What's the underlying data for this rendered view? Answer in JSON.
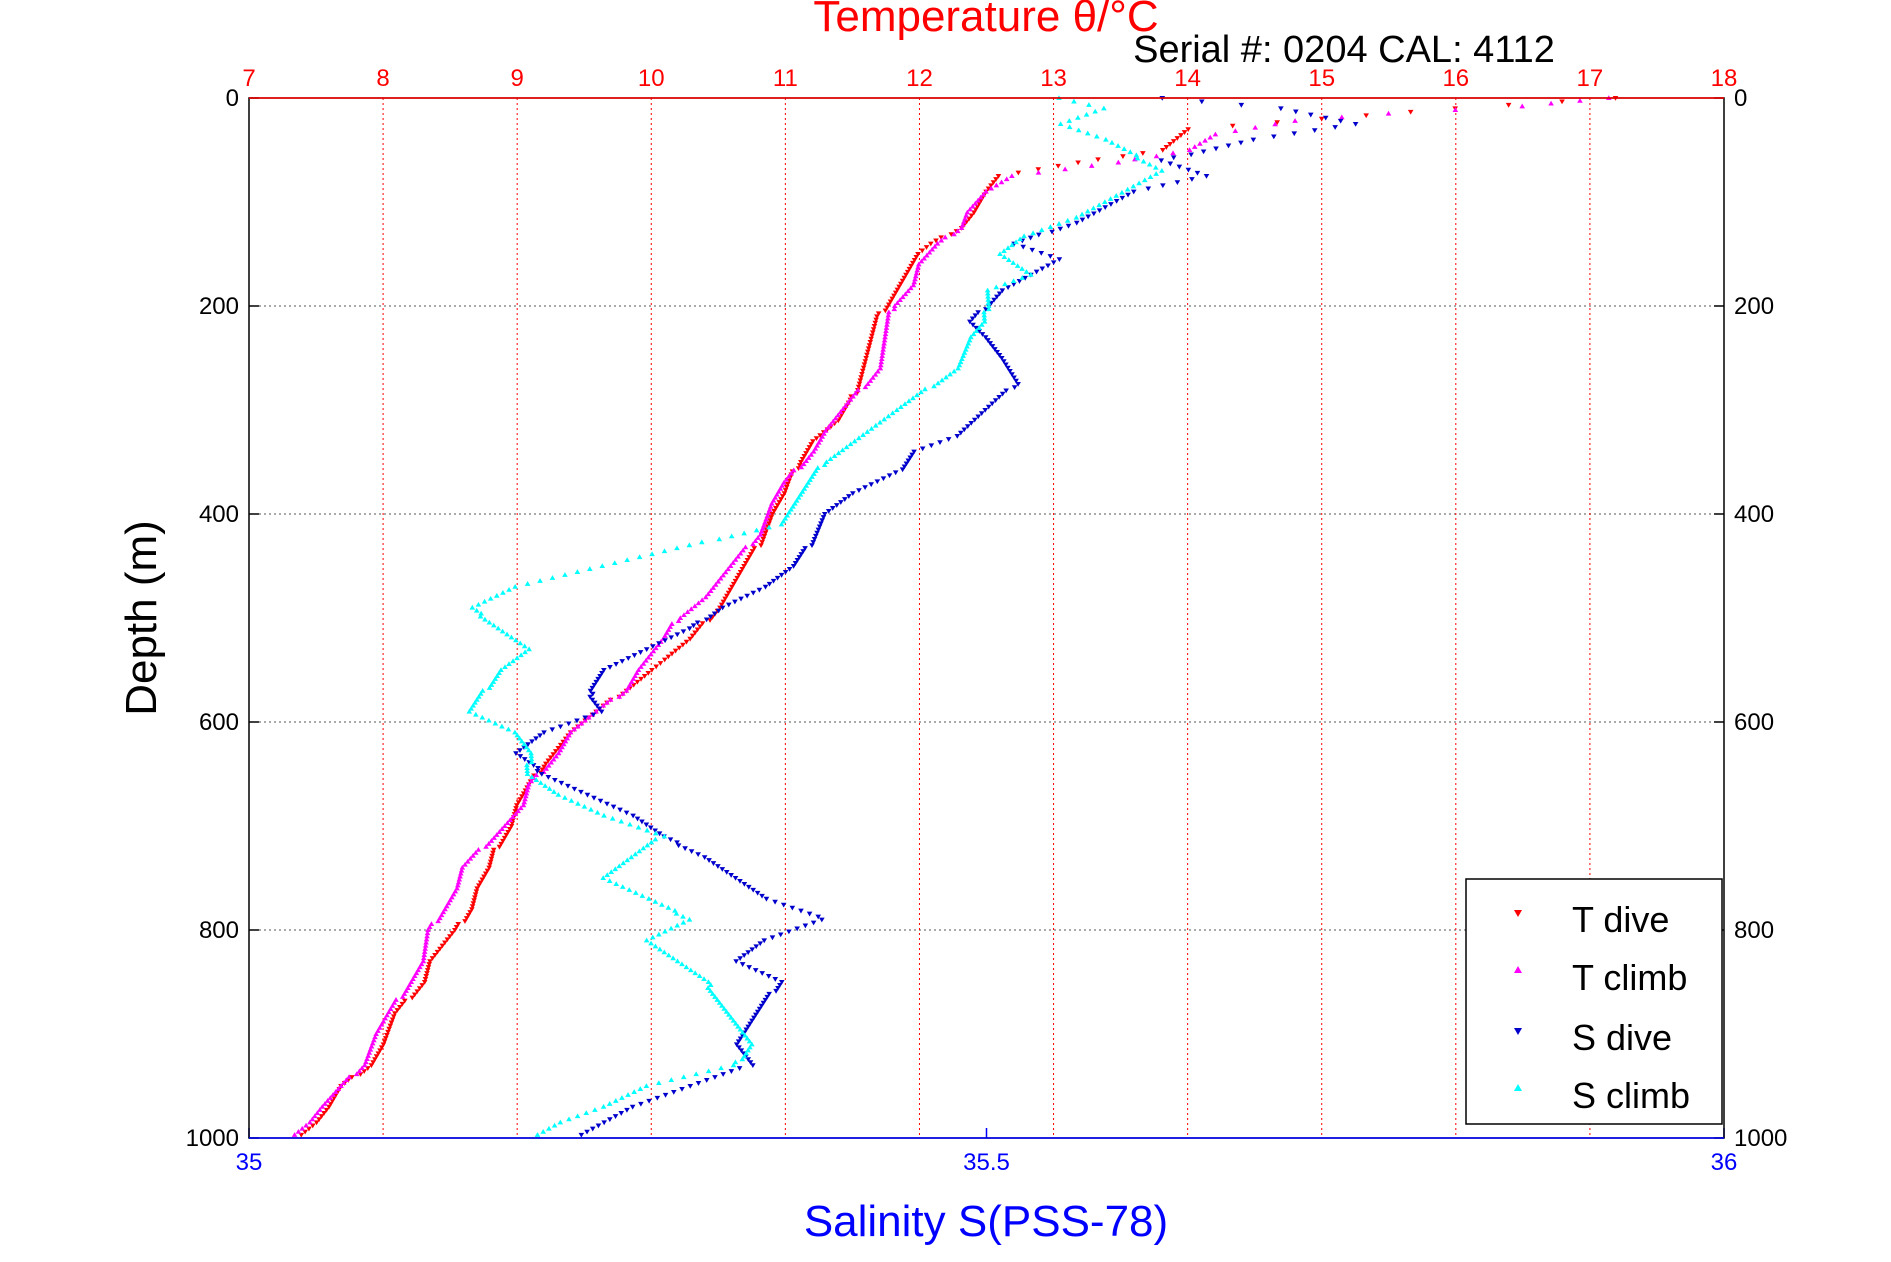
{
  "chart_data": {
    "type": "scatter",
    "title": "Temperature θ/°C",
    "subtitle": "Serial #: 0204  CAL: 4112",
    "ylabel": "Depth (m)",
    "xlabel_bottom": "Salinity S(PSS-78)",
    "y_range": [
      0,
      1000
    ],
    "y_inverted": true,
    "y_ticks": [
      "0",
      "200",
      "400",
      "600",
      "800",
      "1000"
    ],
    "x_top_range": [
      7,
      18
    ],
    "x_top_ticks": [
      "7",
      "8",
      "9",
      "10",
      "11",
      "12",
      "13",
      "14",
      "15",
      "16",
      "17",
      "18"
    ],
    "x_bottom_range": [
      35,
      36
    ],
    "x_bottom_ticks": [
      "35",
      "35.5",
      "36"
    ],
    "grid": true,
    "legend_position": "bottom-right",
    "colors": {
      "top_axis": "#ff0000",
      "bottom_axis": "#0000ff",
      "t_dive": "#ff0000",
      "t_climb": "#ff00ff",
      "s_dive": "#0000cc",
      "s_climb": "#00ffff"
    },
    "series": [
      {
        "name": "T dive",
        "axis": "temperature",
        "color": "#ff0000",
        "marker": "triangle-down",
        "points": [
          [
            17.2,
            0
          ],
          [
            16.0,
            10
          ],
          [
            15.0,
            20
          ],
          [
            14.0,
            30
          ],
          [
            13.8,
            50
          ],
          [
            13.2,
            62
          ],
          [
            12.6,
            75
          ],
          [
            12.5,
            90
          ],
          [
            12.4,
            110
          ],
          [
            12.3,
            125
          ],
          [
            12.1,
            140
          ],
          [
            12.0,
            150
          ],
          [
            11.9,
            170
          ],
          [
            11.8,
            190
          ],
          [
            11.7,
            210
          ],
          [
            11.6,
            250
          ],
          [
            11.5,
            290
          ],
          [
            11.4,
            310
          ],
          [
            11.2,
            330
          ],
          [
            11.1,
            350
          ],
          [
            11.0,
            380
          ],
          [
            10.9,
            400
          ],
          [
            10.8,
            430
          ],
          [
            10.7,
            450
          ],
          [
            10.6,
            470
          ],
          [
            10.5,
            490
          ],
          [
            10.3,
            520
          ],
          [
            10.1,
            540
          ],
          [
            10.0,
            550
          ],
          [
            9.8,
            570
          ],
          [
            9.6,
            590
          ],
          [
            9.4,
            610
          ],
          [
            9.2,
            640
          ],
          [
            9.1,
            660
          ],
          [
            9.0,
            680
          ],
          [
            8.95,
            700
          ],
          [
            8.85,
            720
          ],
          [
            8.8,
            740
          ],
          [
            8.7,
            760
          ],
          [
            8.65,
            780
          ],
          [
            8.55,
            800
          ],
          [
            8.35,
            830
          ],
          [
            8.3,
            850
          ],
          [
            8.1,
            880
          ],
          [
            8.0,
            910
          ],
          [
            7.9,
            930
          ],
          [
            7.7,
            950
          ],
          [
            7.6,
            970
          ],
          [
            7.5,
            985
          ],
          [
            7.35,
            1000
          ]
        ]
      },
      {
        "name": "T climb",
        "axis": "temperature",
        "color": "#ff00ff",
        "marker": "triangle-up",
        "points": [
          [
            17.15,
            0
          ],
          [
            16.5,
            8
          ],
          [
            15.5,
            15
          ],
          [
            14.8,
            22
          ],
          [
            14.2,
            35
          ],
          [
            14.0,
            50
          ],
          [
            13.5,
            62
          ],
          [
            12.7,
            75
          ],
          [
            12.5,
            90
          ],
          [
            12.35,
            110
          ],
          [
            12.3,
            125
          ],
          [
            12.15,
            140
          ],
          [
            12.0,
            160
          ],
          [
            11.95,
            180
          ],
          [
            11.8,
            200
          ],
          [
            11.75,
            230
          ],
          [
            11.7,
            260
          ],
          [
            11.5,
            290
          ],
          [
            11.3,
            320
          ],
          [
            11.2,
            340
          ],
          [
            11.0,
            370
          ],
          [
            10.9,
            390
          ],
          [
            10.8,
            420
          ],
          [
            10.6,
            450
          ],
          [
            10.4,
            480
          ],
          [
            10.2,
            500
          ],
          [
            10.1,
            520
          ],
          [
            9.9,
            550
          ],
          [
            9.8,
            570
          ],
          [
            9.6,
            590
          ],
          [
            9.4,
            610
          ],
          [
            9.3,
            630
          ],
          [
            9.1,
            660
          ],
          [
            9.05,
            680
          ],
          [
            8.9,
            700
          ],
          [
            8.75,
            720
          ],
          [
            8.6,
            740
          ],
          [
            8.55,
            760
          ],
          [
            8.45,
            780
          ],
          [
            8.35,
            800
          ],
          [
            8.3,
            830
          ],
          [
            8.2,
            850
          ],
          [
            8.1,
            870
          ],
          [
            7.95,
            900
          ],
          [
            7.85,
            930
          ],
          [
            7.7,
            950
          ],
          [
            7.55,
            970
          ],
          [
            7.45,
            985
          ],
          [
            7.3,
            1000
          ]
        ]
      },
      {
        "name": "S dive",
        "axis": "salinity",
        "color": "#0000cc",
        "marker": "triangle-down",
        "points": [
          [
            35.62,
            0
          ],
          [
            35.7,
            10
          ],
          [
            35.75,
            25
          ],
          [
            35.68,
            40
          ],
          [
            35.62,
            60
          ],
          [
            35.65,
            75
          ],
          [
            35.6,
            90
          ],
          [
            35.58,
            105
          ],
          [
            35.56,
            120
          ],
          [
            35.52,
            140
          ],
          [
            35.55,
            155
          ],
          [
            35.53,
            170
          ],
          [
            35.51,
            185
          ],
          [
            35.5,
            200
          ],
          [
            35.49,
            215
          ],
          [
            35.5,
            230
          ],
          [
            35.51,
            250
          ],
          [
            35.52,
            275
          ],
          [
            35.5,
            300
          ],
          [
            35.48,
            325
          ],
          [
            35.45,
            340
          ],
          [
            35.44,
            360
          ],
          [
            35.41,
            380
          ],
          [
            35.39,
            400
          ],
          [
            35.38,
            430
          ],
          [
            35.37,
            450
          ],
          [
            35.35,
            470
          ],
          [
            35.32,
            490
          ],
          [
            35.3,
            510
          ],
          [
            35.27,
            530
          ],
          [
            35.24,
            550
          ],
          [
            35.23,
            570
          ],
          [
            35.24,
            590
          ],
          [
            35.2,
            610
          ],
          [
            35.18,
            630
          ],
          [
            35.2,
            650
          ],
          [
            35.23,
            670
          ],
          [
            35.26,
            690
          ],
          [
            35.28,
            710
          ],
          [
            35.31,
            730
          ],
          [
            35.33,
            750
          ],
          [
            35.35,
            770
          ],
          [
            35.39,
            790
          ],
          [
            35.35,
            810
          ],
          [
            35.33,
            830
          ],
          [
            35.36,
            850
          ],
          [
            35.35,
            870
          ],
          [
            35.34,
            890
          ],
          [
            35.33,
            910
          ],
          [
            35.34,
            930
          ],
          [
            35.3,
            950
          ],
          [
            35.26,
            970
          ],
          [
            35.24,
            985
          ],
          [
            35.22,
            1000
          ]
        ]
      },
      {
        "name": "S climb",
        "axis": "salinity",
        "color": "#00ffff",
        "marker": "triangle-up",
        "points": [
          [
            35.55,
            0
          ],
          [
            35.58,
            10
          ],
          [
            35.55,
            25
          ],
          [
            35.58,
            40
          ],
          [
            35.6,
            55
          ],
          [
            35.62,
            70
          ],
          [
            35.6,
            85
          ],
          [
            35.58,
            100
          ],
          [
            35.56,
            115
          ],
          [
            35.53,
            130
          ],
          [
            35.51,
            150
          ],
          [
            35.53,
            170
          ],
          [
            35.5,
            185
          ],
          [
            35.5,
            200
          ],
          [
            35.5,
            215
          ],
          [
            35.49,
            230
          ],
          [
            35.48,
            260
          ],
          [
            35.46,
            280
          ],
          [
            35.44,
            300
          ],
          [
            35.41,
            330
          ],
          [
            35.39,
            350
          ],
          [
            35.38,
            370
          ],
          [
            35.37,
            390
          ],
          [
            35.36,
            410
          ],
          [
            35.3,
            430
          ],
          [
            35.24,
            450
          ],
          [
            35.18,
            470
          ],
          [
            35.15,
            490
          ],
          [
            35.17,
            510
          ],
          [
            35.19,
            530
          ],
          [
            35.17,
            550
          ],
          [
            35.16,
            570
          ],
          [
            35.15,
            590
          ],
          [
            35.18,
            610
          ],
          [
            35.19,
            630
          ],
          [
            35.19,
            650
          ],
          [
            35.21,
            670
          ],
          [
            35.24,
            690
          ],
          [
            35.28,
            710
          ],
          [
            35.26,
            730
          ],
          [
            35.24,
            750
          ],
          [
            35.27,
            770
          ],
          [
            35.3,
            790
          ],
          [
            35.27,
            810
          ],
          [
            35.29,
            830
          ],
          [
            35.31,
            850
          ],
          [
            35.32,
            870
          ],
          [
            35.33,
            890
          ],
          [
            35.34,
            910
          ],
          [
            35.33,
            930
          ],
          [
            35.27,
            950
          ],
          [
            35.24,
            970
          ],
          [
            35.21,
            985
          ],
          [
            35.19,
            1000
          ]
        ]
      }
    ]
  }
}
